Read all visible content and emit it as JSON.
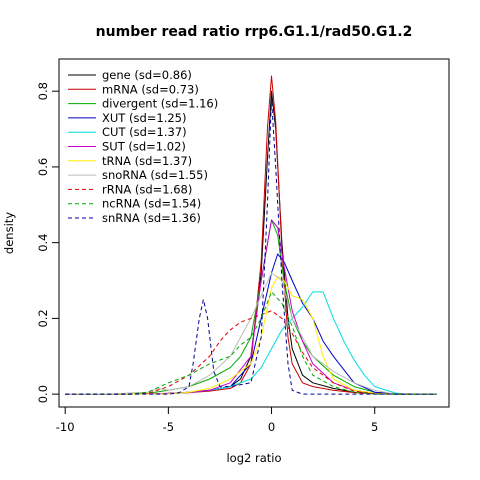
{
  "chart_data": {
    "type": "line",
    "title": "number read ratio rrp6.G1.1/rad50.G1.2",
    "xlabel": "log2 ratio",
    "ylabel": "density",
    "xlim": [
      -10.3,
      8.6
    ],
    "ylim": [
      -0.034,
      0.885
    ],
    "xticks": [
      -10,
      -5,
      0,
      5
    ],
    "xtick_labels": [
      "-10",
      "-5",
      "0",
      "5"
    ],
    "yticks": [
      0.0,
      0.2,
      0.4,
      0.6,
      0.8
    ],
    "ytick_labels": [
      "0.0",
      "0.2",
      "0.4",
      "0.6",
      "0.8"
    ],
    "grid": false,
    "legend_position": "top-left",
    "series": [
      {
        "name": "gene (sd=0.86)",
        "color": "#000000",
        "dash": "solid",
        "x": [
          -10,
          -7,
          -5,
          -4,
          -3,
          -2,
          -1.5,
          -1,
          -0.5,
          -0.2,
          0,
          0.2,
          0.5,
          0.8,
          1,
          1.5,
          2,
          3,
          4,
          5,
          6,
          8
        ],
        "y": [
          0,
          0,
          0.002,
          0.005,
          0.01,
          0.02,
          0.04,
          0.1,
          0.32,
          0.62,
          0.8,
          0.7,
          0.4,
          0.2,
          0.12,
          0.05,
          0.03,
          0.015,
          0.005,
          0.002,
          0,
          0
        ]
      },
      {
        "name": "mRNA (sd=0.73)",
        "color": "#cc0000",
        "dash": "solid",
        "x": [
          -10,
          -7,
          -5,
          -4,
          -3,
          -2,
          -1.5,
          -1,
          -0.5,
          -0.2,
          0,
          0.2,
          0.5,
          0.8,
          1,
          1.5,
          2,
          3,
          4,
          5,
          6,
          8
        ],
        "y": [
          0,
          0,
          0.002,
          0.004,
          0.008,
          0.015,
          0.03,
          0.08,
          0.35,
          0.7,
          0.84,
          0.72,
          0.38,
          0.15,
          0.08,
          0.03,
          0.02,
          0.01,
          0.004,
          0.001,
          0,
          0
        ]
      },
      {
        "name": "divergent (sd=1.16)",
        "color": "#00aa00",
        "dash": "solid",
        "x": [
          -10,
          -7,
          -6,
          -5,
          -4,
          -3,
          -2,
          -1.5,
          -1,
          -0.5,
          0,
          0.3,
          0.6,
          1,
          1.5,
          2,
          3,
          4,
          5,
          6,
          8
        ],
        "y": [
          0,
          0,
          0.002,
          0.01,
          0.02,
          0.04,
          0.07,
          0.1,
          0.15,
          0.3,
          0.46,
          0.42,
          0.3,
          0.2,
          0.14,
          0.1,
          0.05,
          0.02,
          0.005,
          0,
          0
        ]
      },
      {
        "name": "XUT (sd=1.25)",
        "color": "#0000cc",
        "dash": "solid",
        "x": [
          -10,
          -7,
          -5,
          -4,
          -3,
          -2,
          -1,
          -0.5,
          0,
          0.3,
          0.6,
          1,
          1.5,
          2,
          2.5,
          3,
          4,
          5,
          6,
          8
        ],
        "y": [
          0,
          0,
          0.002,
          0.005,
          0.01,
          0.02,
          0.08,
          0.2,
          0.32,
          0.37,
          0.35,
          0.3,
          0.24,
          0.2,
          0.14,
          0.1,
          0.03,
          0.005,
          0,
          0
        ]
      },
      {
        "name": "CUT (sd=1.37)",
        "color": "#00dddd",
        "dash": "solid",
        "x": [
          -10,
          -7,
          -5,
          -4,
          -3,
          -2,
          -1,
          -0.5,
          0,
          0.5,
          1,
          1.5,
          2,
          2.5,
          3,
          3.5,
          4,
          4.5,
          5,
          6,
          6.5,
          8
        ],
        "y": [
          0,
          0,
          0.001,
          0.004,
          0.01,
          0.02,
          0.04,
          0.07,
          0.12,
          0.17,
          0.2,
          0.23,
          0.27,
          0.27,
          0.2,
          0.14,
          0.09,
          0.05,
          0.02,
          0.003,
          0,
          0
        ]
      },
      {
        "name": "SUT (sd=1.02)",
        "color": "#cc00cc",
        "dash": "solid",
        "x": [
          -10,
          -7,
          -5,
          -4,
          -3,
          -2,
          -1,
          -0.5,
          0,
          0.3,
          0.6,
          1,
          1.5,
          2,
          3,
          4,
          5,
          6,
          8
        ],
        "y": [
          0,
          0,
          0.002,
          0.004,
          0.01,
          0.03,
          0.1,
          0.3,
          0.46,
          0.44,
          0.34,
          0.22,
          0.14,
          0.08,
          0.03,
          0.01,
          0.002,
          0,
          0
        ]
      },
      {
        "name": "tRNA (sd=1.37)",
        "color": "#ffee00",
        "dash": "solid",
        "x": [
          -10,
          -7,
          -5,
          -4,
          -3,
          -2,
          -1,
          -0.5,
          0,
          0.3,
          0.6,
          1,
          1.5,
          2,
          2.5,
          3,
          4,
          5,
          6,
          8
        ],
        "y": [
          0,
          0,
          0.001,
          0.005,
          0.015,
          0.04,
          0.08,
          0.15,
          0.28,
          0.31,
          0.3,
          0.26,
          0.25,
          0.2,
          0.1,
          0.04,
          0.01,
          0.002,
          0,
          0
        ]
      },
      {
        "name": "snoRNA (sd=1.55)",
        "color": "#bbbbbb",
        "dash": "solid",
        "x": [
          -10,
          -8,
          -6,
          -5.5,
          -5,
          -4,
          -3,
          -2,
          -1,
          -0.5,
          0,
          0.5,
          1,
          1.5,
          2,
          3,
          4,
          5,
          6,
          8
        ],
        "y": [
          0,
          0,
          0.005,
          0.015,
          0.01,
          0.02,
          0.05,
          0.1,
          0.2,
          0.26,
          0.32,
          0.3,
          0.2,
          0.15,
          0.1,
          0.06,
          0.03,
          0.01,
          0,
          0
        ]
      },
      {
        "name": "rRNA (sd=1.68)",
        "color": "#dd0000",
        "dash": "dashed",
        "x": [
          -10,
          -7,
          -6,
          -5,
          -4,
          -3,
          -2.5,
          -2,
          -1.5,
          -1,
          -0.5,
          0,
          0.5,
          1,
          1.5,
          2,
          3,
          4,
          5,
          8
        ],
        "y": [
          0,
          0,
          0.002,
          0.02,
          0.05,
          0.1,
          0.14,
          0.17,
          0.19,
          0.2,
          0.21,
          0.22,
          0.2,
          0.16,
          0.11,
          0.07,
          0.03,
          0.008,
          0.001,
          0
        ]
      },
      {
        "name": "ncRNA (sd=1.54)",
        "color": "#00aa00",
        "dash": "dashed",
        "x": [
          -10,
          -7,
          -6,
          -5,
          -4,
          -3,
          -2,
          -1.5,
          -1,
          -0.5,
          0,
          0.5,
          1,
          1.5,
          2,
          3,
          4,
          5,
          8
        ],
        "y": [
          0,
          0,
          0.005,
          0.03,
          0.05,
          0.08,
          0.1,
          0.13,
          0.15,
          0.2,
          0.27,
          0.24,
          0.18,
          0.1,
          0.05,
          0.02,
          0.005,
          0,
          0
        ]
      },
      {
        "name": "snRNA (sd=1.36)",
        "color": "#000099",
        "dash": "dashed",
        "x": [
          -10,
          -5,
          -4.5,
          -4,
          -3.8,
          -3.5,
          -3.3,
          -3.1,
          -2.8,
          -2.5,
          -2,
          -1,
          -0.5,
          -0.2,
          0,
          0.2,
          0.5,
          0.8,
          1,
          1.5,
          8
        ],
        "y": [
          0,
          0,
          0.003,
          0.02,
          0.08,
          0.2,
          0.25,
          0.2,
          0.06,
          0.02,
          0.02,
          0.03,
          0.15,
          0.5,
          0.78,
          0.6,
          0.3,
          0.08,
          0.01,
          0,
          0
        ]
      }
    ]
  }
}
